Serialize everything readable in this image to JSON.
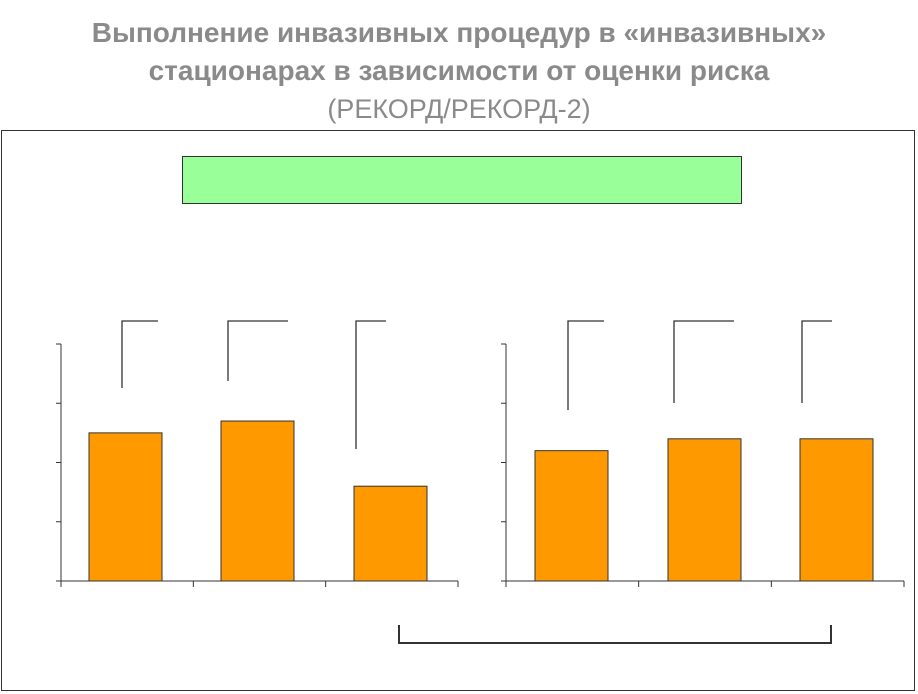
{
  "title": {
    "line1": "Выполнение инвазивных процедур в «инвазивных»",
    "line2": "стационарах в зависимости от оценки риска",
    "line3": "(РЕКОРД/РЕКОРД‑2)"
  },
  "colors": {
    "bar": "#ff9900",
    "bar_stroke": "#333333",
    "banner": "#99ff99",
    "title": "#8a8a8a"
  },
  "chart_data": [
    {
      "type": "bar",
      "categories": [
        "",
        "",
        ""
      ],
      "values": [
        50,
        54,
        32
      ],
      "ylim": [
        0,
        80
      ],
      "yticks": [
        0,
        20,
        40,
        60,
        80
      ],
      "title": "",
      "xlabel": "",
      "ylabel": ""
    },
    {
      "type": "bar",
      "categories": [
        "",
        "",
        ""
      ],
      "values": [
        44,
        48,
        48
      ],
      "ylim": [
        0,
        80
      ],
      "yticks": [
        0,
        20,
        40,
        60,
        80
      ],
      "title": "",
      "xlabel": "",
      "ylabel": ""
    }
  ]
}
